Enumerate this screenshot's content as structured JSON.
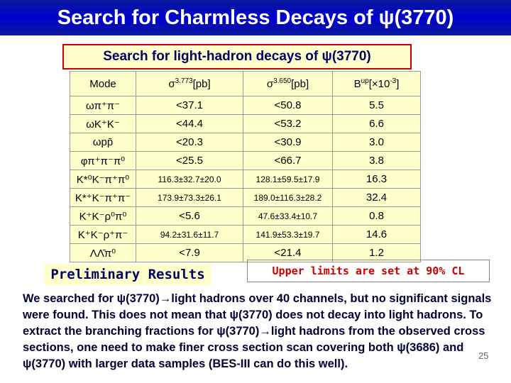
{
  "header": {
    "title": "Search for Charmless Decays of ψ(3770)"
  },
  "subtitle": "Search for light-hadron decays of ψ(3770)",
  "table": {
    "columns": [
      [
        {
          "text": "Mode"
        }
      ],
      [
        {
          "text": "σ"
        },
        {
          "text": "3.773",
          "sup": true
        },
        {
          "text": "[pb]"
        }
      ],
      [
        {
          "text": "σ"
        },
        {
          "text": "3.650",
          "sup": true
        },
        {
          "text": "[pb]"
        }
      ],
      [
        {
          "text": "B"
        },
        {
          "text": "up",
          "sup": true
        },
        {
          "text": "[×10"
        },
        {
          "text": "-3",
          "sup": true
        },
        {
          "text": "]"
        }
      ]
    ],
    "rows": [
      [
        "ωπ⁺π⁻",
        "<37.1",
        "<50.8",
        "5.5"
      ],
      [
        "ωK⁺K⁻",
        "<44.4",
        "<53.2",
        "6.6"
      ],
      [
        "ωpp̄",
        "<20.3",
        "<30.9",
        "3.0"
      ],
      [
        "φπ⁺π⁻π⁰",
        "<25.5",
        "<66.7",
        "3.8"
      ],
      [
        "K*⁰K⁻π⁺π⁰",
        "116.3±32.7±20.0",
        "128.1±59.5±17.9",
        "16.3"
      ],
      [
        "K*⁺K⁻π⁺π⁻",
        "173.9±73.3±26.1",
        "189.0±116.3±28.2",
        "32.4"
      ],
      [
        "K⁺K⁻ρ⁰π⁰",
        "<5.6",
        "47.6±33.4±10.7",
        "0.8"
      ],
      [
        "K⁺K⁻ρ⁺π⁻",
        "94.2±31.6±11.7",
        "141.9±53.3±19.7",
        "14.6"
      ],
      [
        "ΛΛ̄π⁰",
        "<7.9",
        "<21.4",
        "1.2"
      ]
    ]
  },
  "notes": {
    "left": "Preliminary Results",
    "right": "Upper limits are set at 90% CL"
  },
  "paragraph": "We searched for ψ(3770)→light hadrons over 40 channels, but no significant signals were found. This does not mean that ψ(3770) does not decay into light hadrons. To extract the branching fractions for ψ(3770)→light hadrons from the observed cross sections, one need to make finer cross section scan covering both ψ(3686) and ψ(3770) with larger data samples (BES-III can do this well).",
  "page_number": "25"
}
